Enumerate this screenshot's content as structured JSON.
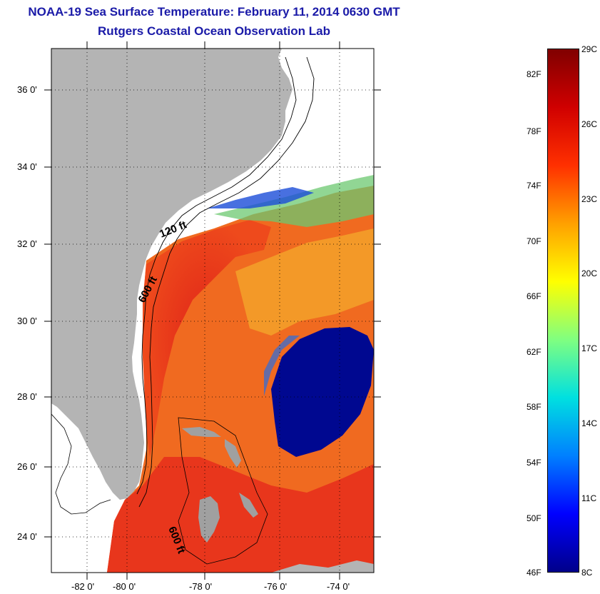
{
  "title": {
    "line1": "NOAA-19 Sea Surface Temperature:  February 11, 2014 0630 GMT",
    "line2": "Rutgers Coastal Ocean Observation Lab"
  },
  "map": {
    "lat_labels": [
      "36 0'",
      "34 0'",
      "32 0'",
      "30 0'",
      "28 0'",
      "26 0'",
      "24 0'"
    ],
    "lon_labels": [
      "-82 0'",
      "-80 0'",
      "-78 0'",
      "-76 0'",
      "-74 0'"
    ],
    "contour_labels": [
      "120 ft",
      "600 ft",
      "600 ft"
    ],
    "colors": {
      "land": "#b4b4b4",
      "no_data": "#ffffff",
      "warm": "#e8341c",
      "mid_warm": "#f26a1e",
      "cold": "#00089a",
      "frontal": "#8fd04a"
    }
  },
  "colorbar": {
    "fahrenheit": [
      "82F",
      "78F",
      "74F",
      "70F",
      "66F",
      "62F",
      "58F",
      "54F",
      "50F",
      "46F"
    ],
    "celsius": [
      "29C",
      "26C",
      "23C",
      "20C",
      "17C",
      "14C",
      "11C",
      "8C"
    ],
    "range_c": [
      8,
      29
    ],
    "stops": [
      "#00008a",
      "#0000ff",
      "#0080ff",
      "#00e0e0",
      "#80ff80",
      "#ffff00",
      "#ffa000",
      "#ff3000",
      "#d00000",
      "#800000"
    ]
  }
}
